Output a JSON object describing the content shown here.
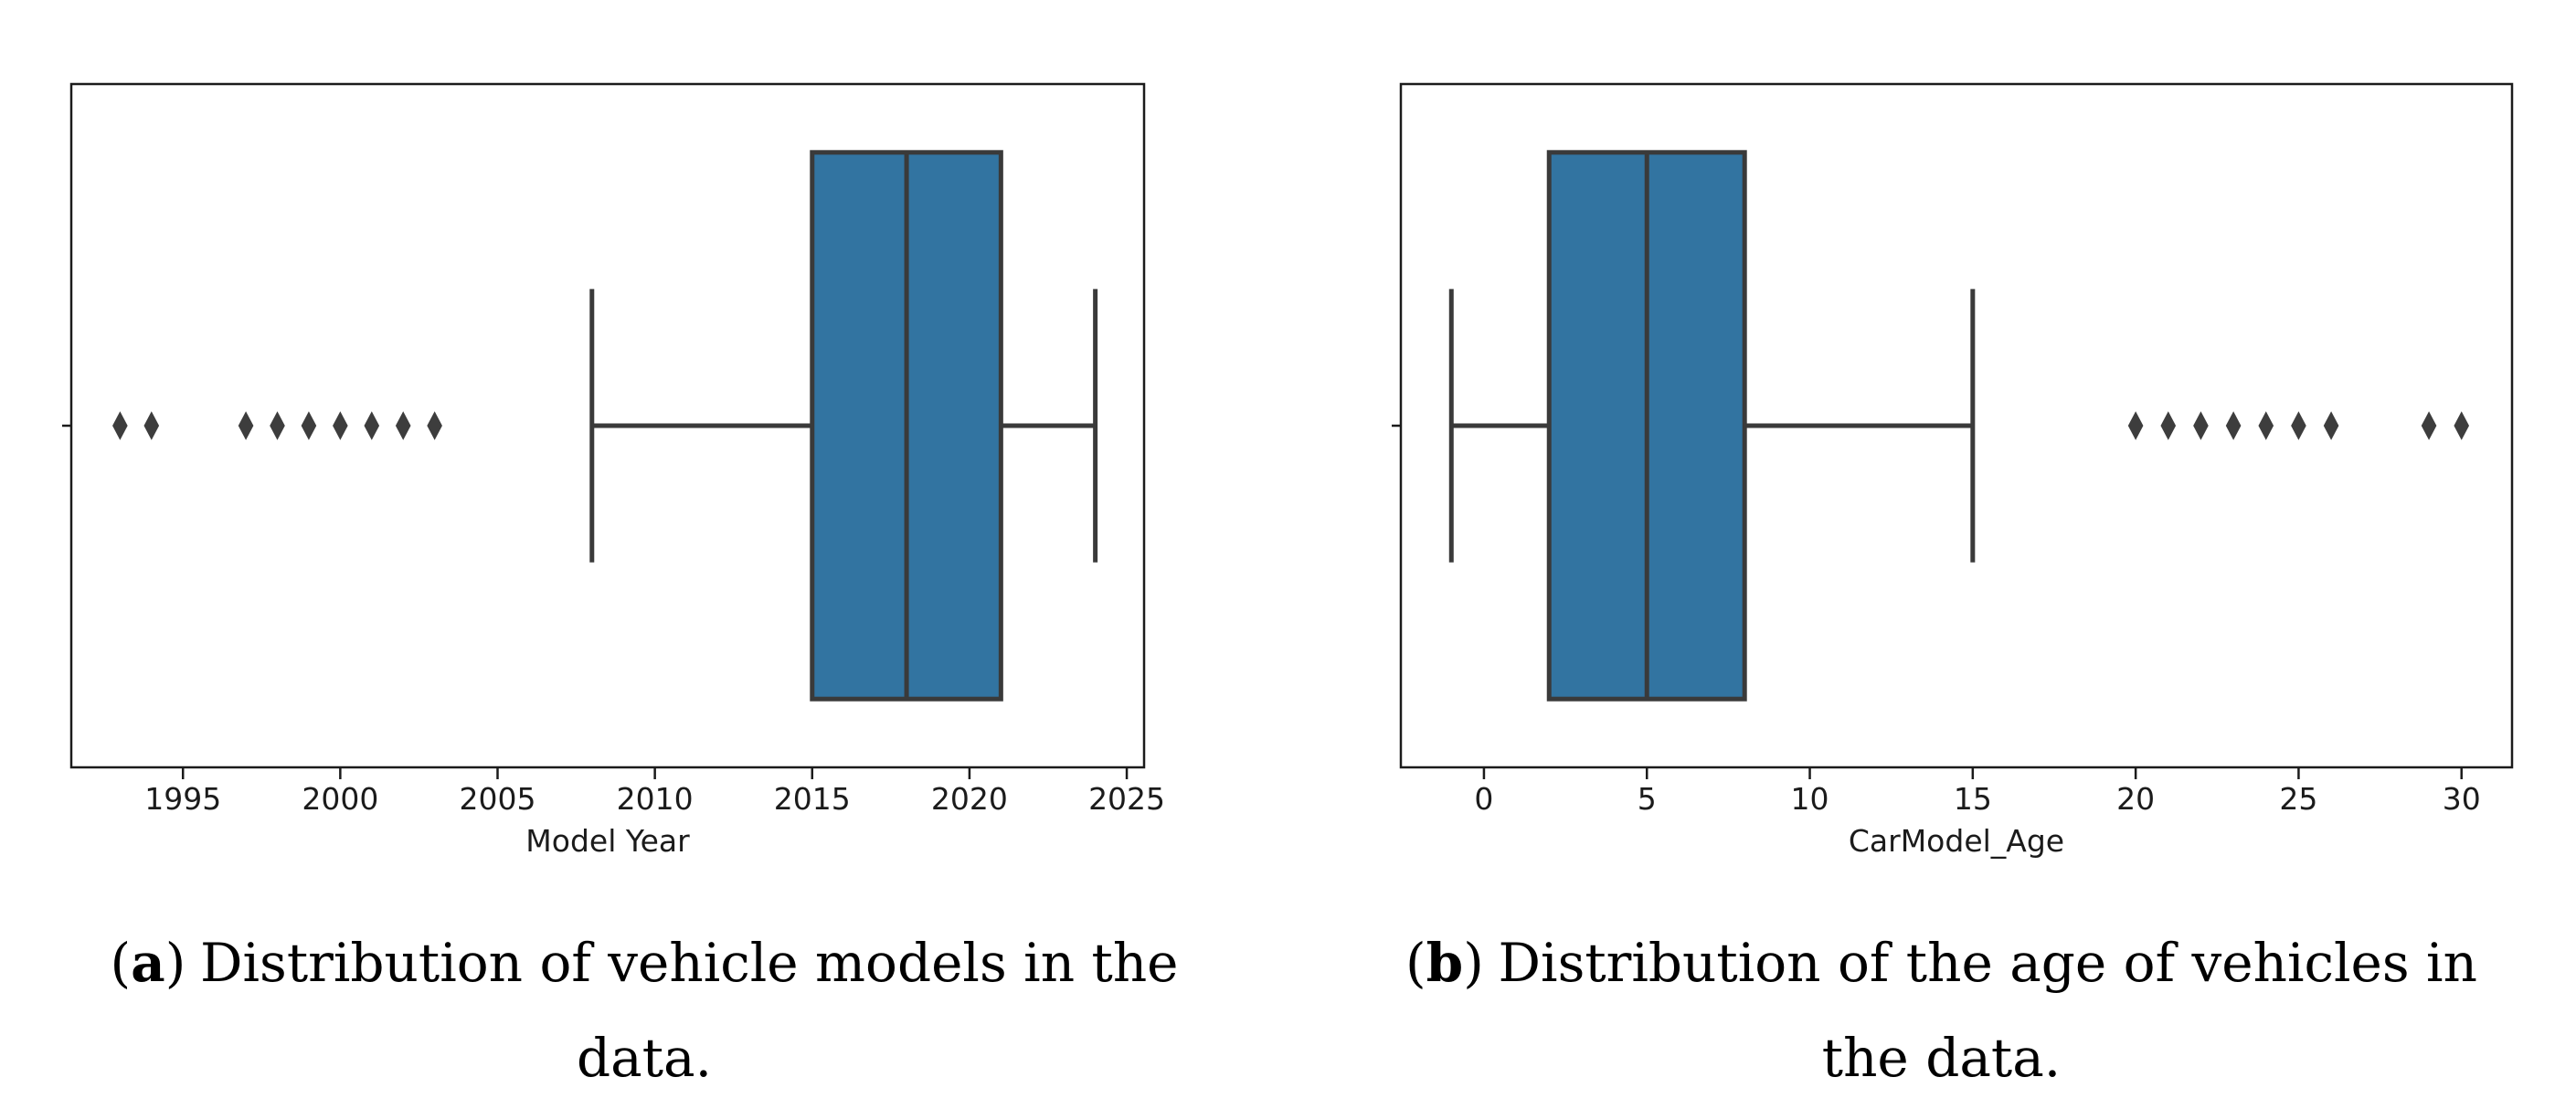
{
  "figure": {
    "captions": [
      {
        "open": "(",
        "letter": "a",
        "close": ")",
        "line1": "Distribution of vehicle models in the",
        "line2": "data."
      },
      {
        "open": "(",
        "letter": "b",
        "close": ")",
        "line1": "Distribution of the age of vehicles in",
        "line2": "the data."
      }
    ]
  },
  "colors": {
    "box_fill": "#3274a1",
    "line": "#3a3a3a",
    "outlier": "#3d3d3d",
    "spine": "#1b1b1b",
    "text": "#1b1b1b"
  },
  "chart_data": [
    {
      "type": "boxplot-horizontal",
      "title": "",
      "xlabel": "Model Year",
      "ylabel": "",
      "xlim": [
        1991.45,
        2025.55
      ],
      "xticks": [
        1995,
        2000,
        2005,
        2010,
        2015,
        2020,
        2025
      ],
      "grid": false,
      "box": {
        "whisker_low": 2008,
        "q1": 2015,
        "median": 2018,
        "q3": 2021,
        "whisker_high": 2024
      },
      "outliers": [
        1993,
        1994,
        1997,
        1998,
        1999,
        2000,
        2001,
        2002,
        2003
      ]
    },
    {
      "type": "boxplot-horizontal",
      "title": "",
      "xlabel": "CarModel_Age",
      "ylabel": "",
      "xlim": [
        -2.55,
        31.55
      ],
      "xticks": [
        0,
        5,
        10,
        15,
        20,
        25,
        30
      ],
      "grid": false,
      "box": {
        "whisker_low": -1,
        "q1": 2,
        "median": 5,
        "q3": 8,
        "whisker_high": 15
      },
      "outliers": [
        20,
        21,
        22,
        23,
        24,
        25,
        26,
        29,
        30
      ]
    }
  ]
}
